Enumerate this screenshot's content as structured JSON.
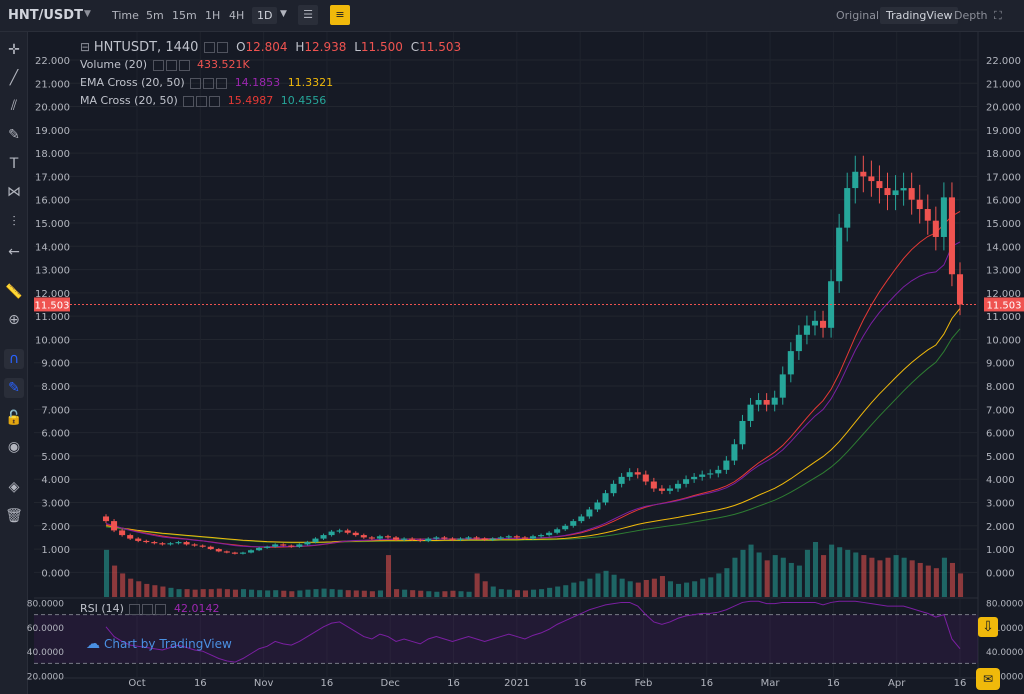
{
  "topbar": {
    "pair": "HNT/USDT",
    "intervals": [
      "Time",
      "5m",
      "15m",
      "1H",
      "4H",
      "1D"
    ],
    "selected_interval": "1D",
    "views": [
      "Original",
      "TradingView",
      "Depth"
    ],
    "active_view": "TradingView"
  },
  "legend": {
    "symbol": "HNTUSDT, 1440",
    "o_label": "O",
    "o": "12.804",
    "h_label": "H",
    "h": "12.938",
    "l_label": "L",
    "l": "11.500",
    "c_label": "C",
    "c": "11.503",
    "volume_name": "Volume (20)",
    "volume_value": "433.521K",
    "ema_name": "EMA Cross (20, 50)",
    "ema_fast": "14.1853",
    "ema_slow": "11.3321",
    "ma_name": "MA Cross (20, 50)",
    "ma_fast": "15.4987",
    "ma_slow": "10.4556",
    "rsi_name": "RSI (14)",
    "rsi_value": "42.0142"
  },
  "watermark": "Chart by TradingView",
  "colors": {
    "up": "#26a69a",
    "down": "#ef5350",
    "ema_fast": "#7b1fa2",
    "ema_slow": "#f0b90b",
    "ma_fast": "#e53935",
    "ma_slow": "#2e7d32",
    "rsi": "#7b1fa2"
  },
  "chart_data": {
    "type": "candlestick",
    "title": "HNTUSDT, 1440",
    "y_ticks": [
      "22.000",
      "21.000",
      "20.000",
      "19.000",
      "18.000",
      "17.000",
      "16.000",
      "15.000",
      "14.000",
      "13.000",
      "12.000",
      "11.000",
      "10.000",
      "9.000",
      "8.000",
      "7.000",
      "6.000",
      "5.000",
      "4.000",
      "3.000",
      "2.000",
      "1.000",
      "0.000"
    ],
    "ylim": [
      -0.5,
      22.6
    ],
    "last_price": "11.503",
    "x_ticks": [
      "Oct",
      "16",
      "Nov",
      "16",
      "Dec",
      "16",
      "2021",
      "16",
      "Feb",
      "16",
      "Mar",
      "16",
      "Apr",
      "16"
    ],
    "rsi_ticks": [
      "80.0000",
      "60.0000",
      "40.0000",
      "20.0000"
    ],
    "rsi_ylim": [
      18,
      82
    ],
    "close": [
      2.2,
      1.8,
      1.6,
      1.45,
      1.35,
      1.3,
      1.25,
      1.2,
      1.25,
      1.3,
      1.2,
      1.15,
      1.1,
      1.0,
      0.9,
      0.85,
      0.8,
      0.85,
      0.95,
      1.05,
      1.1,
      1.2,
      1.15,
      1.1,
      1.2,
      1.3,
      1.45,
      1.6,
      1.75,
      1.8,
      1.7,
      1.6,
      1.5,
      1.45,
      1.55,
      1.5,
      1.4,
      1.45,
      1.4,
      1.35,
      1.45,
      1.5,
      1.45,
      1.4,
      1.45,
      1.5,
      1.45,
      1.4,
      1.45,
      1.5,
      1.55,
      1.5,
      1.45,
      1.55,
      1.6,
      1.7,
      1.85,
      2.0,
      2.2,
      2.4,
      2.7,
      3.0,
      3.4,
      3.8,
      4.1,
      4.3,
      4.2,
      3.9,
      3.6,
      3.5,
      3.6,
      3.8,
      4.0,
      4.1,
      4.2,
      4.25,
      4.4,
      4.8,
      5.5,
      6.5,
      7.2,
      7.4,
      7.2,
      7.5,
      8.5,
      9.5,
      10.2,
      10.6,
      10.8,
      10.5,
      12.5,
      14.8,
      16.5,
      17.2,
      17.0,
      16.8,
      16.5,
      16.2,
      16.4,
      16.5,
      16.0,
      15.6,
      15.1,
      14.4,
      16.1,
      12.8,
      11.503
    ],
    "volume": [
      180,
      120,
      90,
      70,
      60,
      50,
      45,
      40,
      35,
      30,
      30,
      28,
      30,
      30,
      32,
      30,
      28,
      30,
      28,
      26,
      25,
      26,
      24,
      22,
      25,
      28,
      30,
      32,
      30,
      28,
      26,
      25,
      24,
      22,
      25,
      160,
      30,
      28,
      26,
      24,
      22,
      20,
      22,
      24,
      22,
      20,
      90,
      60,
      40,
      30,
      28,
      26,
      25,
      28,
      30,
      35,
      40,
      45,
      55,
      60,
      70,
      90,
      100,
      85,
      70,
      60,
      55,
      65,
      70,
      80,
      60,
      50,
      55,
      60,
      70,
      75,
      90,
      110,
      150,
      180,
      200,
      170,
      140,
      160,
      150,
      130,
      120,
      180,
      210,
      160,
      200,
      190,
      180,
      170,
      160,
      150,
      140,
      150,
      160,
      150,
      140,
      130,
      120,
      110,
      150,
      130,
      90
    ],
    "ema20": [
      2.1,
      2.0,
      1.9,
      1.8,
      1.72,
      1.65,
      1.58,
      1.52,
      1.48,
      1.45,
      1.42,
      1.38,
      1.35,
      1.3,
      1.25,
      1.2,
      1.15,
      1.12,
      1.1,
      1.1,
      1.1,
      1.11,
      1.11,
      1.11,
      1.12,
      1.14,
      1.17,
      1.21,
      1.26,
      1.31,
      1.35,
      1.37,
      1.38,
      1.39,
      1.41,
      1.42,
      1.42,
      1.42,
      1.42,
      1.42,
      1.42,
      1.43,
      1.43,
      1.43,
      1.43,
      1.44,
      1.44,
      1.44,
      1.44,
      1.45,
      1.46,
      1.46,
      1.46,
      1.47,
      1.48,
      1.5,
      1.54,
      1.59,
      1.66,
      1.74,
      1.85,
      1.97,
      2.11,
      2.28,
      2.45,
      2.61,
      2.74,
      2.84,
      2.9,
      2.95,
      3.01,
      3.08,
      3.17,
      3.26,
      3.34,
      3.42,
      3.51,
      3.63,
      3.81,
      4.06,
      4.34,
      4.58,
      4.78,
      4.99,
      5.26,
      5.61,
      5.99,
      6.36,
      6.71,
      6.99,
      7.45,
      8.07,
      8.81,
      9.53,
      10.15,
      10.7,
      11.16,
      11.55,
      11.92,
      12.26,
      12.52,
      12.72,
      12.85,
      12.9,
      13.2,
      14.0,
      14.185
    ],
    "ema50": [
      2.0,
      1.95,
      1.9,
      1.85,
      1.8,
      1.76,
      1.72,
      1.68,
      1.65,
      1.62,
      1.59,
      1.56,
      1.53,
      1.5,
      1.47,
      1.44,
      1.41,
      1.38,
      1.36,
      1.34,
      1.32,
      1.31,
      1.3,
      1.29,
      1.29,
      1.29,
      1.29,
      1.3,
      1.31,
      1.33,
      1.34,
      1.34,
      1.35,
      1.35,
      1.36,
      1.36,
      1.36,
      1.36,
      1.37,
      1.37,
      1.37,
      1.37,
      1.38,
      1.38,
      1.38,
      1.39,
      1.39,
      1.39,
      1.39,
      1.4,
      1.4,
      1.4,
      1.41,
      1.41,
      1.42,
      1.43,
      1.44,
      1.46,
      1.49,
      1.53,
      1.57,
      1.63,
      1.7,
      1.78,
      1.88,
      1.97,
      2.06,
      2.13,
      2.19,
      2.25,
      2.3,
      2.36,
      2.43,
      2.49,
      2.56,
      2.62,
      2.69,
      2.77,
      2.87,
      3.0,
      3.15,
      3.31,
      3.46,
      3.61,
      3.8,
      4.02,
      4.26,
      4.5,
      4.74,
      4.97,
      5.26,
      5.61,
      6.02,
      6.45,
      6.87,
      7.28,
      7.66,
      8.01,
      8.36,
      8.7,
      9.01,
      9.29,
      9.55,
      9.76,
      10.23,
      10.9,
      11.332
    ],
    "ma20": [
      2.05,
      1.98,
      1.9,
      1.82,
      1.75,
      1.68,
      1.62,
      1.56,
      1.51,
      1.47,
      1.43,
      1.39,
      1.35,
      1.31,
      1.26,
      1.22,
      1.18,
      1.14,
      1.11,
      1.09,
      1.08,
      1.08,
      1.09,
      1.1,
      1.11,
      1.13,
      1.16,
      1.2,
      1.25,
      1.3,
      1.34,
      1.36,
      1.37,
      1.38,
      1.4,
      1.41,
      1.42,
      1.42,
      1.43,
      1.43,
      1.43,
      1.43,
      1.43,
      1.44,
      1.44,
      1.44,
      1.44,
      1.45,
      1.45,
      1.45,
      1.46,
      1.46,
      1.46,
      1.47,
      1.48,
      1.5,
      1.53,
      1.57,
      1.63,
      1.7,
      1.8,
      1.91,
      2.04,
      2.19,
      2.36,
      2.53,
      2.68,
      2.8,
      2.89,
      2.96,
      3.03,
      3.11,
      3.2,
      3.3,
      3.39,
      3.48,
      3.58,
      3.71,
      3.89,
      4.14,
      4.43,
      4.7,
      4.93,
      5.16,
      5.45,
      5.82,
      6.23,
      6.64,
      7.03,
      7.37,
      7.86,
      8.53,
      9.32,
      10.12,
      10.84,
      11.48,
      12.05,
      12.55,
      13.03,
      13.48,
      13.86,
      14.17,
      14.42,
      14.58,
      14.95,
      15.3,
      15.4987
    ],
    "ma50": [
      1.95,
      1.9,
      1.86,
      1.82,
      1.78,
      1.74,
      1.7,
      1.66,
      1.63,
      1.6,
      1.57,
      1.54,
      1.51,
      1.48,
      1.45,
      1.42,
      1.39,
      1.36,
      1.34,
      1.32,
      1.3,
      1.29,
      1.28,
      1.27,
      1.27,
      1.27,
      1.27,
      1.28,
      1.29,
      1.3,
      1.31,
      1.32,
      1.32,
      1.33,
      1.33,
      1.34,
      1.34,
      1.34,
      1.35,
      1.35,
      1.35,
      1.35,
      1.36,
      1.36,
      1.36,
      1.37,
      1.37,
      1.37,
      1.37,
      1.38,
      1.38,
      1.38,
      1.39,
      1.39,
      1.4,
      1.4,
      1.41,
      1.42,
      1.44,
      1.46,
      1.49,
      1.52,
      1.56,
      1.61,
      1.67,
      1.73,
      1.79,
      1.85,
      1.9,
      1.95,
      2.0,
      2.05,
      2.1,
      2.16,
      2.22,
      2.28,
      2.34,
      2.41,
      2.49,
      2.59,
      2.71,
      2.84,
      2.97,
      3.1,
      3.26,
      3.44,
      3.64,
      3.85,
      4.06,
      4.27,
      4.52,
      4.82,
      5.17,
      5.55,
      5.94,
      6.33,
      6.71,
      7.07,
      7.43,
      7.79,
      8.13,
      8.45,
      8.75,
      9.02,
      9.48,
      10.05,
      10.4556
    ],
    "rsi": [
      60,
      52,
      48,
      45,
      44,
      43,
      42,
      41,
      43,
      45,
      43,
      41,
      40,
      37,
      34,
      32,
      31,
      34,
      38,
      42,
      44,
      48,
      46,
      45,
      48,
      52,
      56,
      60,
      63,
      64,
      60,
      56,
      52,
      50,
      54,
      52,
      48,
      50,
      48,
      46,
      50,
      52,
      50,
      48,
      50,
      52,
      50,
      48,
      50,
      52,
      54,
      52,
      50,
      53,
      55,
      58,
      62,
      65,
      68,
      71,
      74,
      76,
      78,
      79,
      80,
      80,
      77,
      70,
      64,
      62,
      64,
      67,
      69,
      70,
      71,
      71,
      72,
      74,
      77,
      80,
      81,
      81,
      79,
      79,
      80,
      80,
      80,
      80,
      80,
      78,
      80,
      81,
      81,
      81,
      80,
      79,
      78,
      77,
      77,
      77,
      75,
      73,
      71,
      68,
      70,
      50,
      42.0142
    ]
  }
}
